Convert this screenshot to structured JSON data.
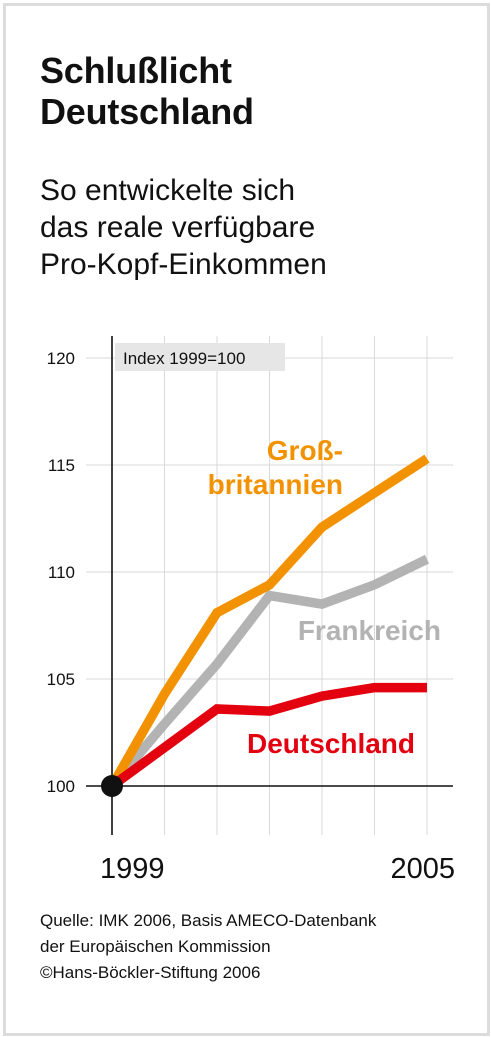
{
  "title_lines": [
    "Schlußlicht",
    "Deutschland"
  ],
  "subtitle_lines": [
    "So entwickelte sich",
    "das reale verfügbare",
    "Pro-Kopf-Einkommen"
  ],
  "source_lines": [
    "Quelle: IMK 2006, Basis AMECO-Datenbank",
    "der Europäischen Kommission",
    "©Hans-Böckler-Stiftung 2006"
  ],
  "chart_data": {
    "type": "line",
    "title": "",
    "index_label": "Index 1999=100",
    "x": [
      1999,
      2000,
      2001,
      2002,
      2003,
      2004,
      2005
    ],
    "x_tick_labels": [
      "1999",
      "2005"
    ],
    "y_ticks": [
      100,
      105,
      110,
      115,
      120
    ],
    "ylim": [
      98.5,
      121.5
    ],
    "xlim": [
      1999,
      2005
    ],
    "grid": true,
    "legend": "labels placed next to lines",
    "series": [
      {
        "name": "Groß-",
        "name_line2": "britannien",
        "color": "#f39200",
        "values": [
          100,
          104.3,
          108.1,
          109.4,
          112.1,
          113.7,
          115.3
        ]
      },
      {
        "name": "Frankreich",
        "color": "#b3b3b3",
        "values": [
          100,
          102.9,
          105.7,
          108.9,
          108.5,
          109.4,
          110.6
        ]
      },
      {
        "name": "Deutschland",
        "color": "#e3000f",
        "values": [
          100,
          101.8,
          103.6,
          103.5,
          104.2,
          104.6,
          104.6
        ]
      }
    ]
  }
}
